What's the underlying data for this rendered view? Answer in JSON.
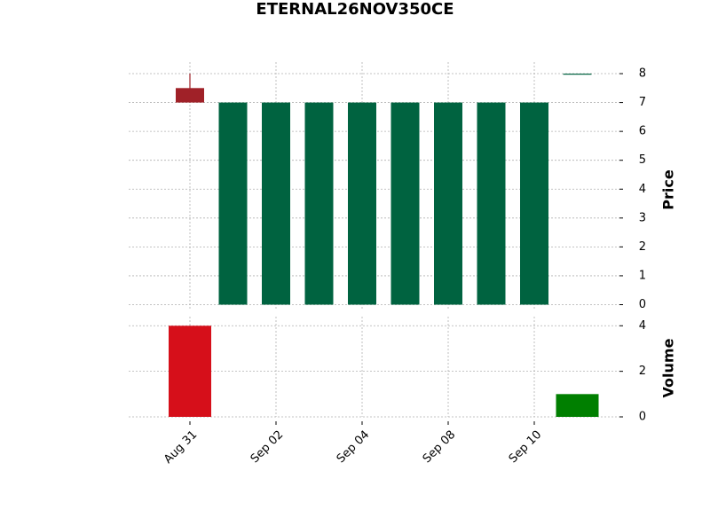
{
  "chart_data": {
    "type": "candlestick",
    "title": "ETERNAL26NOV350CE",
    "categories": [
      "Aug 31",
      null,
      "Sep 02",
      null,
      "Sep 04",
      null,
      "Sep 08",
      null,
      "Sep 10",
      null
    ],
    "open": [
      7.5,
      0,
      0,
      0,
      0,
      0,
      0,
      0,
      0,
      8
    ],
    "high": [
      8,
      7,
      7,
      7,
      7,
      7,
      7,
      7,
      7,
      8
    ],
    "low": [
      7,
      0,
      0,
      0,
      0,
      0,
      0,
      0,
      0,
      8
    ],
    "close": [
      7,
      7,
      7,
      7,
      7,
      7,
      7,
      7,
      7,
      8
    ],
    "up_color": "#006340",
    "down_color": "#a02128",
    "ylabel": "Price",
    "ylim": [
      -0.2,
      8.4
    ],
    "yticks": [
      0,
      1,
      2,
      3,
      4,
      5,
      6,
      7,
      8
    ],
    "grid": true,
    "volume": {
      "ylabel": "Volume",
      "values": [
        4,
        0,
        0,
        0,
        0,
        0,
        0,
        0,
        0,
        1
      ],
      "up_color": "#007f00",
      "down_color": "#d60f1a",
      "ylim": [
        0,
        4.4
      ],
      "yticks": [
        0,
        2,
        4
      ]
    }
  }
}
